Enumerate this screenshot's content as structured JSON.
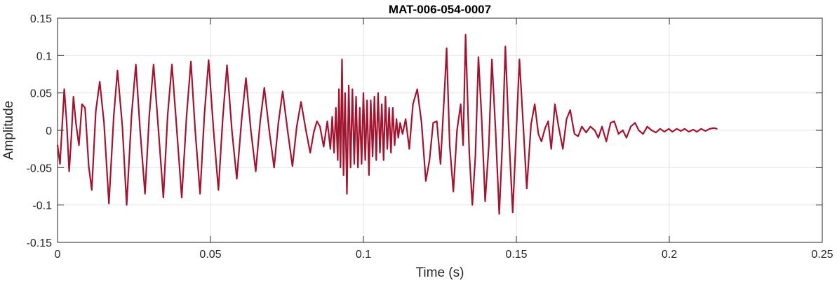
{
  "chart_data": {
    "type": "line",
    "title": "MAT-006-054-0007",
    "xlabel": "Time (s)",
    "ylabel": "Amplitude",
    "xlim": [
      0,
      0.25
    ],
    "ylim": [
      -0.15,
      0.15
    ],
    "xticks": [
      0,
      0.05,
      0.1,
      0.15,
      0.2,
      0.25
    ],
    "xtick_labels": [
      "0",
      "0.05",
      "0.1",
      "0.15",
      "0.2",
      "0.25"
    ],
    "yticks": [
      -0.15,
      -0.1,
      -0.05,
      0,
      0.05,
      0.1,
      0.15
    ],
    "ytick_labels": [
      "-0.15",
      "-0.1",
      "-0.05",
      "0",
      "0.05",
      "0.1",
      "0.15"
    ],
    "grid": true,
    "line_color": "#A2142F",
    "series": [
      {
        "points": [
          [
            0.0,
            -0.02
          ],
          [
            0.0008,
            -0.045
          ],
          [
            0.0015,
            0.005
          ],
          [
            0.0022,
            0.055
          ],
          [
            0.003,
            0.01
          ],
          [
            0.0038,
            -0.055
          ],
          [
            0.0045,
            -0.01
          ],
          [
            0.0052,
            0.045
          ],
          [
            0.006,
            0.01
          ],
          [
            0.007,
            -0.02
          ],
          [
            0.008,
            0.035
          ],
          [
            0.009,
            0.03
          ],
          [
            0.0102,
            -0.048
          ],
          [
            0.0112,
            -0.08
          ],
          [
            0.0125,
            0.025
          ],
          [
            0.0138,
            0.065
          ],
          [
            0.0152,
            0.01
          ],
          [
            0.0168,
            -0.098
          ],
          [
            0.0184,
            0.02
          ],
          [
            0.0196,
            0.08
          ],
          [
            0.0212,
            0.005
          ],
          [
            0.0226,
            -0.1
          ],
          [
            0.0242,
            0.02
          ],
          [
            0.0256,
            0.088
          ],
          [
            0.027,
            0.0
          ],
          [
            0.0286,
            -0.085
          ],
          [
            0.03,
            0.02
          ],
          [
            0.0314,
            0.088
          ],
          [
            0.033,
            0.0
          ],
          [
            0.0346,
            -0.09
          ],
          [
            0.036,
            0.02
          ],
          [
            0.0374,
            0.088
          ],
          [
            0.039,
            0.0
          ],
          [
            0.0406,
            -0.09
          ],
          [
            0.0422,
            0.02
          ],
          [
            0.0436,
            0.092
          ],
          [
            0.045,
            0.0
          ],
          [
            0.0466,
            -0.085
          ],
          [
            0.048,
            0.02
          ],
          [
            0.0494,
            0.094
          ],
          [
            0.051,
            0.0
          ],
          [
            0.0526,
            -0.08
          ],
          [
            0.054,
            0.015
          ],
          [
            0.0554,
            0.087
          ],
          [
            0.057,
            0.0
          ],
          [
            0.0586,
            -0.065
          ],
          [
            0.0602,
            0.015
          ],
          [
            0.0616,
            0.07
          ],
          [
            0.0632,
            0.0
          ],
          [
            0.0648,
            -0.055
          ],
          [
            0.0662,
            0.01
          ],
          [
            0.0676,
            0.057
          ],
          [
            0.0692,
            0.0
          ],
          [
            0.0708,
            -0.05
          ],
          [
            0.0722,
            0.01
          ],
          [
            0.0736,
            0.052
          ],
          [
            0.0752,
            0.0
          ],
          [
            0.0768,
            -0.048
          ],
          [
            0.0782,
            0.005
          ],
          [
            0.0796,
            0.038
          ],
          [
            0.0812,
            0.0
          ],
          [
            0.0826,
            -0.03
          ],
          [
            0.0838,
            -0.002
          ],
          [
            0.0848,
            0.012
          ],
          [
            0.0858,
            0.005
          ],
          [
            0.087,
            -0.022
          ],
          [
            0.0882,
            0.012
          ],
          [
            0.0892,
            -0.025
          ],
          [
            0.0898,
            0.018
          ],
          [
            0.0904,
            -0.03
          ],
          [
            0.091,
            0.03
          ],
          [
            0.0916,
            -0.04
          ],
          [
            0.092,
            0.055
          ],
          [
            0.0925,
            -0.05
          ],
          [
            0.093,
            0.095
          ],
          [
            0.0935,
            -0.06
          ],
          [
            0.094,
            0.05
          ],
          [
            0.0946,
            -0.085
          ],
          [
            0.0952,
            0.06
          ],
          [
            0.0958,
            -0.05
          ],
          [
            0.0964,
            0.055
          ],
          [
            0.097,
            -0.045
          ],
          [
            0.0976,
            0.045
          ],
          [
            0.0982,
            -0.05
          ],
          [
            0.0988,
            0.03
          ],
          [
            0.0994,
            -0.045
          ],
          [
            0.1,
            0.05
          ],
          [
            0.1006,
            -0.04
          ],
          [
            0.1012,
            0.04
          ],
          [
            0.1018,
            -0.06
          ],
          [
            0.1024,
            0.04
          ],
          [
            0.103,
            -0.035
          ],
          [
            0.1036,
            0.045
          ],
          [
            0.1042,
            -0.04
          ],
          [
            0.1048,
            0.05
          ],
          [
            0.1054,
            -0.03
          ],
          [
            0.106,
            0.035
          ],
          [
            0.1066,
            -0.04
          ],
          [
            0.1072,
            0.045
          ],
          [
            0.1078,
            -0.025
          ],
          [
            0.1084,
            0.03
          ],
          [
            0.109,
            -0.03
          ],
          [
            0.1096,
            0.03
          ],
          [
            0.1102,
            -0.02
          ],
          [
            0.1108,
            0.015
          ],
          [
            0.1114,
            -0.01
          ],
          [
            0.112,
            0.01
          ],
          [
            0.1128,
            -0.005
          ],
          [
            0.1138,
            0.015
          ],
          [
            0.115,
            -0.025
          ],
          [
            0.1162,
            0.035
          ],
          [
            0.1176,
            0.055
          ],
          [
            0.119,
            0.01
          ],
          [
            0.1204,
            -0.068
          ],
          [
            0.1216,
            -0.04
          ],
          [
            0.1228,
            0.01
          ],
          [
            0.124,
            0.012
          ],
          [
            0.1252,
            -0.045
          ],
          [
            0.1266,
            0.06
          ],
          [
            0.1272,
            0.11
          ],
          [
            0.1282,
            -0.02
          ],
          [
            0.1294,
            -0.082
          ],
          [
            0.1306,
            0.0
          ],
          [
            0.1318,
            0.035
          ],
          [
            0.1326,
            -0.02
          ],
          [
            0.1334,
            0.128
          ],
          [
            0.1346,
            -0.03
          ],
          [
            0.1356,
            -0.1
          ],
          [
            0.1366,
            -0.035
          ],
          [
            0.1376,
            0.098
          ],
          [
            0.1386,
            0.02
          ],
          [
            0.1398,
            -0.095
          ],
          [
            0.141,
            -0.02
          ],
          [
            0.142,
            0.095
          ],
          [
            0.1432,
            0.0
          ],
          [
            0.1444,
            -0.112
          ],
          [
            0.1454,
            -0.02
          ],
          [
            0.1464,
            0.112
          ],
          [
            0.1476,
            -0.01
          ],
          [
            0.1488,
            -0.11
          ],
          [
            0.15,
            0.0
          ],
          [
            0.151,
            0.095
          ],
          [
            0.1522,
            0.01
          ],
          [
            0.1534,
            -0.078
          ],
          [
            0.1548,
            0.008
          ],
          [
            0.156,
            0.035
          ],
          [
            0.1572,
            -0.005
          ],
          [
            0.1582,
            -0.015
          ],
          [
            0.1594,
            0.003
          ],
          [
            0.1604,
            0.012
          ],
          [
            0.1614,
            -0.025
          ],
          [
            0.1626,
            0.035
          ],
          [
            0.1638,
            0.005
          ],
          [
            0.1652,
            -0.025
          ],
          [
            0.1664,
            0.015
          ],
          [
            0.1676,
            0.027
          ],
          [
            0.169,
            -0.005
          ],
          [
            0.1702,
            -0.008
          ],
          [
            0.1714,
            0.005
          ],
          [
            0.1728,
            -0.003
          ],
          [
            0.1742,
            0.005
          ],
          [
            0.1756,
            0.0
          ],
          [
            0.1768,
            -0.01
          ],
          [
            0.178,
            0.005
          ],
          [
            0.1794,
            -0.015
          ],
          [
            0.1808,
            0.01
          ],
          [
            0.182,
            0.012
          ],
          [
            0.1834,
            -0.005
          ],
          [
            0.1848,
            0.0
          ],
          [
            0.186,
            -0.01
          ],
          [
            0.1874,
            0.005
          ],
          [
            0.1888,
            0.01
          ],
          [
            0.19,
            0.0
          ],
          [
            0.1914,
            -0.005
          ],
          [
            0.1928,
            0.005
          ],
          [
            0.1942,
            0.0
          ],
          [
            0.1956,
            -0.003
          ],
          [
            0.197,
            0.002
          ],
          [
            0.1984,
            -0.002
          ],
          [
            0.1998,
            0.002
          ],
          [
            0.201,
            -0.002
          ],
          [
            0.2024,
            0.002
          ],
          [
            0.2038,
            -0.001
          ],
          [
            0.205,
            0.002
          ],
          [
            0.2064,
            -0.002
          ],
          [
            0.2078,
            0.001
          ],
          [
            0.209,
            -0.002
          ],
          [
            0.2104,
            0.002
          ],
          [
            0.2118,
            -0.001
          ],
          [
            0.2132,
            0.002
          ],
          [
            0.2146,
            0.003
          ],
          [
            0.2155,
            0.002
          ]
        ]
      }
    ]
  }
}
